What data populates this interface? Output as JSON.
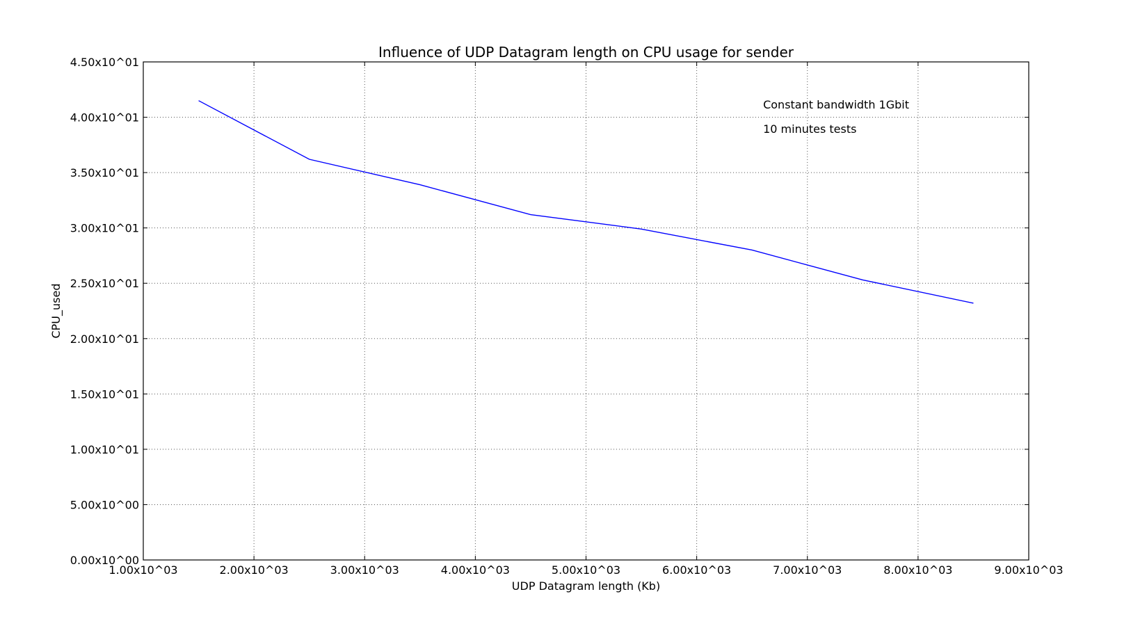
{
  "chart_data": {
    "type": "line",
    "title": "Influence of UDP Datagram length on CPU usage for sender",
    "xlabel": "UDP Datagram length (Kb)",
    "ylabel": "CPU_used",
    "xlim": [
      1000,
      9000
    ],
    "ylim": [
      0,
      45
    ],
    "grid": true,
    "x_ticks": [
      1000,
      2000,
      3000,
      4000,
      5000,
      6000,
      7000,
      8000,
      9000
    ],
    "x_tick_labels": [
      "1.00x10^03",
      "2.00x10^03",
      "3.00x10^03",
      "4.00x10^03",
      "5.00x10^03",
      "6.00x10^03",
      "7.00x10^03",
      "8.00x10^03",
      "9.00x10^03"
    ],
    "y_ticks": [
      0,
      5,
      10,
      15,
      20,
      25,
      30,
      35,
      40,
      45
    ],
    "y_tick_labels": [
      "0.00x10^00",
      "5.00x10^00",
      "1.00x10^01",
      "1.50x10^01",
      "2.00x10^01",
      "2.50x10^01",
      "3.00x10^01",
      "3.50x10^01",
      "4.00x10^01",
      "4.50x10^01"
    ],
    "series": [
      {
        "color": "#0000ff",
        "x": [
          1500,
          2500,
          3500,
          4500,
          5500,
          6500,
          7500,
          8500
        ],
        "y": [
          41.5,
          36.2,
          33.9,
          31.2,
          29.9,
          28.0,
          25.3,
          23.2
        ]
      }
    ],
    "annotations": [
      {
        "text": "Constant bandwidth 1Gbit",
        "x": 6600,
        "y": 40.8
      },
      {
        "text": "10 minutes tests",
        "x": 6600,
        "y": 38.6
      }
    ]
  }
}
